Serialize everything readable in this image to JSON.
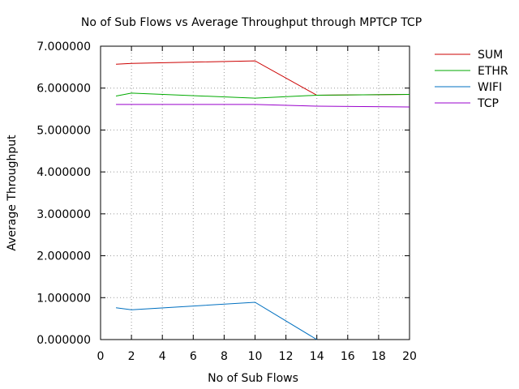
{
  "chart_data": {
    "type": "line",
    "title": "No of Sub Flows vs Average Throughput through MPTCP TCP",
    "xlabel": "No of Sub Flows",
    "ylabel": "Average Throughput",
    "xlim": [
      0,
      20
    ],
    "ylim": [
      0,
      7
    ],
    "xticks": [
      "0",
      "2",
      "4",
      "6",
      "8",
      "10",
      "12",
      "14",
      "16",
      "18",
      "20"
    ],
    "yticks": [
      "0.000000",
      "1.000000",
      "2.000000",
      "3.000000",
      "4.000000",
      "5.000000",
      "6.000000",
      "7.000000"
    ],
    "grid": true,
    "legend_position": "outside-top-right",
    "series": [
      {
        "name": "SUM",
        "color": "#cc0000",
        "points": [
          [
            1,
            6.57
          ],
          [
            2,
            6.59
          ],
          [
            10,
            6.65
          ],
          [
            14,
            5.83
          ],
          [
            20,
            5.85
          ]
        ]
      },
      {
        "name": "ETHR",
        "color": "#00aa00",
        "points": [
          [
            1,
            5.81
          ],
          [
            2,
            5.88
          ],
          [
            10,
            5.76
          ],
          [
            14,
            5.83
          ],
          [
            20,
            5.85
          ]
        ]
      },
      {
        "name": "WIFI",
        "color": "#0070c0",
        "points": [
          [
            1,
            0.76
          ],
          [
            2,
            0.71
          ],
          [
            10,
            0.89
          ],
          [
            14,
            0.0
          ]
        ]
      },
      {
        "name": "TCP",
        "color": "#9900cc",
        "points": [
          [
            1,
            5.61
          ],
          [
            2,
            5.61
          ],
          [
            10,
            5.61
          ],
          [
            14,
            5.57
          ],
          [
            20,
            5.55
          ]
        ]
      }
    ]
  }
}
